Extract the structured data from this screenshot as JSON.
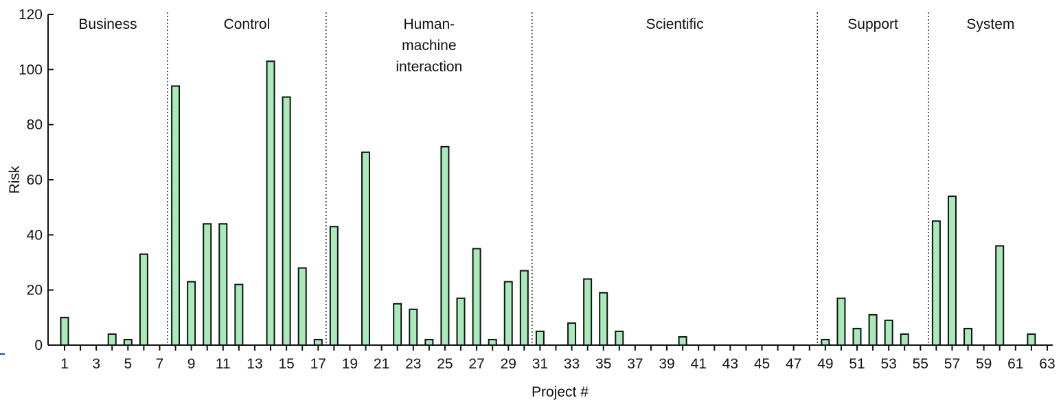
{
  "chart_data": {
    "type": "bar",
    "ylabel": "Risk",
    "xlabel": "Project #",
    "ylim": [
      0,
      120
    ],
    "yticks": [
      0,
      20,
      40,
      60,
      80,
      100,
      120
    ],
    "x_tick_labels": [
      1,
      3,
      5,
      7,
      9,
      11,
      13,
      15,
      17,
      19,
      21,
      23,
      25,
      27,
      29,
      31,
      33,
      35,
      37,
      39,
      41,
      43,
      45,
      47,
      49,
      51,
      53,
      55,
      57,
      59,
      61,
      63
    ],
    "colors": {
      "bar_fill": "#a8eaba",
      "bar_stroke": "#111111"
    },
    "groups": [
      {
        "name": "Business",
        "label_lines": [
          "Business"
        ],
        "start": 1,
        "end": 7
      },
      {
        "name": "Control",
        "label_lines": [
          "Control"
        ],
        "start": 8,
        "end": 17
      },
      {
        "name": "Human-machine interaction",
        "label_lines": [
          "Human-",
          "machine",
          "interaction"
        ],
        "start": 18,
        "end": 30
      },
      {
        "name": "Scientific",
        "label_lines": [
          "Scientific"
        ],
        "start": 31,
        "end": 48
      },
      {
        "name": "Support",
        "label_lines": [
          "Support"
        ],
        "start": 49,
        "end": 55
      },
      {
        "name": "System",
        "label_lines": [
          "System"
        ],
        "start": 56,
        "end": 63
      }
    ],
    "x": [
      1,
      4,
      5,
      6,
      8,
      9,
      10,
      11,
      12,
      14,
      15,
      16,
      17,
      18,
      20,
      22,
      23,
      24,
      25,
      26,
      27,
      28,
      29,
      30,
      31,
      33,
      34,
      35,
      36,
      40,
      49,
      50,
      51,
      52,
      53,
      54,
      56,
      57,
      58,
      60,
      62
    ],
    "values": [
      10,
      4,
      2,
      33,
      94,
      23,
      44,
      44,
      22,
      103,
      90,
      28,
      2,
      43,
      70,
      15,
      13,
      2,
      72,
      17,
      35,
      2,
      23,
      27,
      5,
      8,
      24,
      19,
      5,
      3,
      2,
      17,
      6,
      11,
      9,
      4,
      45,
      54,
      6,
      36,
      4
    ]
  }
}
